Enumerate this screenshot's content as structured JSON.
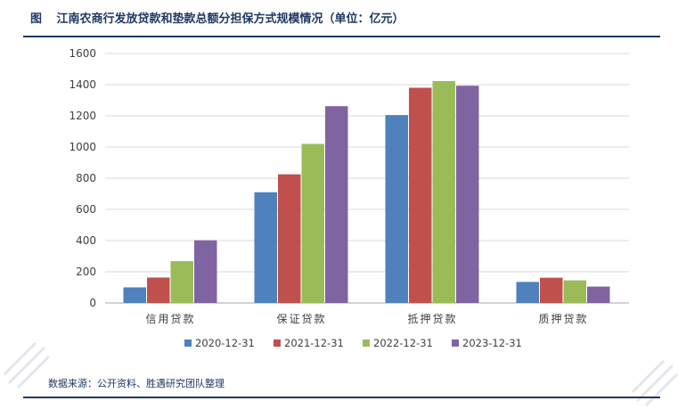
{
  "header": {
    "figure_label": "图",
    "title": "江南农商行发放贷款和垫款总额分担保方式规模情况（单位：亿元）"
  },
  "source": "数据来源：公开资料、胜遇研究团队整理",
  "chart_data": {
    "type": "bar",
    "title": "江南农商行发放贷款和垫款总额分担保方式规模情况（单位：亿元）",
    "categories": [
      "信用贷款",
      "保证贷款",
      "抵押贷款",
      "质押贷款"
    ],
    "series": [
      {
        "name": "2020-12-31",
        "color": "#4f81bd",
        "values": [
          100,
          710,
          1205,
          135
        ]
      },
      {
        "name": "2021-12-31",
        "color": "#c0504d",
        "values": [
          163,
          825,
          1380,
          162
        ]
      },
      {
        "name": "2022-12-31",
        "color": "#9bbb59",
        "values": [
          268,
          1020,
          1423,
          145
        ]
      },
      {
        "name": "2023-12-31",
        "color": "#8064a2",
        "values": [
          402,
          1262,
          1393,
          105
        ]
      }
    ],
    "ylim": [
      0,
      1600
    ],
    "yticks": [
      0,
      200,
      400,
      600,
      800,
      1000,
      1200,
      1400,
      1600
    ],
    "grid": true,
    "legend_position": "bottom"
  }
}
